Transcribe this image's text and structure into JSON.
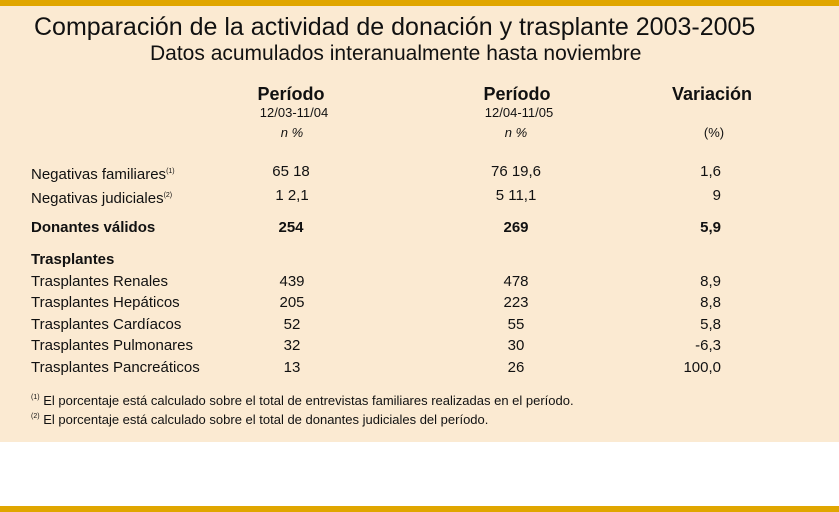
{
  "title": "Comparación de la actividad de donación y trasplante 2003-2005",
  "subtitle": "Datos acumulados interanualmente hasta noviembre",
  "columns": {
    "p1": {
      "label": "Período",
      "dates": "12/03-11/04",
      "unit": "n %"
    },
    "p2": {
      "label": "Período",
      "dates": "12/04-11/05",
      "unit": "n %"
    },
    "var": {
      "label": "Variación",
      "unit": "(%)"
    }
  },
  "rows": {
    "negativas_familiares": {
      "label": "Negativas familiares",
      "sup": "(1)",
      "p1": "65 18",
      "p2": "76  19,6",
      "var": "1,6"
    },
    "negativas_judiciales": {
      "label": "Negativas judiciales",
      "sup": "(2)",
      "p1": "1  2,1",
      "p2": "5  11,1",
      "var": "9"
    },
    "donantes_validos": {
      "label": "Donantes válidos",
      "p1": "254",
      "p2": "269",
      "var": "5,9"
    }
  },
  "trasplantes": {
    "heading": "Trasplantes",
    "items": [
      {
        "label": "Trasplantes Renales",
        "p1": "439",
        "p2": "478",
        "var": "8,9"
      },
      {
        "label": "Trasplantes Hepáticos",
        "p1": "205",
        "p2": "223",
        "var": "8,8"
      },
      {
        "label": "Trasplantes Cardíacos",
        "p1": "52",
        "p2": "55",
        "var": "5,8"
      },
      {
        "label": "Trasplantes Pulmonares",
        "p1": "32",
        "p2": "30",
        "var": "-6,3"
      },
      {
        "label": "Trasplantes Pancreáticos",
        "p1": "13",
        "p2": "26",
        "var": "100,0"
      }
    ]
  },
  "footnotes": [
    {
      "mark": "(1)",
      "text": "El porcentaje está calculado sobre el total de entrevistas familiares realizadas en el período."
    },
    {
      "mark": "(2)",
      "text": "El porcentaje está calculado sobre el total de donantes judiciales del período."
    }
  ],
  "colors": {
    "panel": "#fbead2",
    "accent": "#e0a600"
  }
}
